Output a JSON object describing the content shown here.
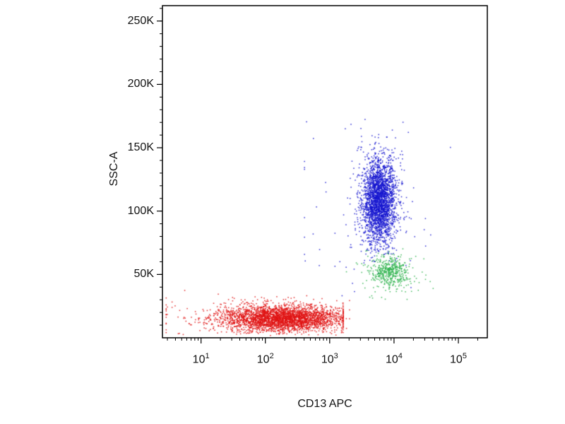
{
  "chart_data": {
    "type": "scatter",
    "title": "",
    "xlabel": "CD13 APC",
    "ylabel": "SSC-A",
    "x_scale": "log",
    "y_scale": "linear",
    "grid": false,
    "legend": "none",
    "x_tick_base": "10",
    "x_tick_exponents": [
      1,
      2,
      3,
      4,
      5
    ],
    "x_log_range": [
      0.4,
      5.45
    ],
    "y_range": [
      0,
      262144
    ],
    "y_ticks": [
      {
        "value": 50000,
        "label": "50K"
      },
      {
        "value": 100000,
        "label": "100K"
      },
      {
        "value": 150000,
        "label": "150K"
      },
      {
        "value": 200000,
        "label": "200K"
      },
      {
        "value": 250000,
        "label": "250K"
      }
    ],
    "y_minor_step": 10000,
    "frame_color": "#000000",
    "populations": [
      {
        "name": "cd13-negative-debris-core",
        "color": "#e01414",
        "n": 3200,
        "x_log_mean": 2.25,
        "x_log_sd": 0.48,
        "x_clip": [
          0.45,
          3.2
        ],
        "y_mean": 15500,
        "y_sd": 5200,
        "y_clip": [
          2500,
          33000
        ]
      },
      {
        "name": "cd13-negative-sparse",
        "color": "#e01414",
        "n": 130,
        "x_log_mean": 1.6,
        "x_log_sd": 0.9,
        "x_clip": [
          0.45,
          3.3
        ],
        "y_mean": 17000,
        "y_sd": 9000,
        "y_clip": [
          2000,
          40000
        ]
      },
      {
        "name": "cd13-positive-scatter-outliers",
        "color": "#1515cf",
        "n": 70,
        "x_log_mean": 3.5,
        "x_log_sd": 0.7,
        "x_clip": [
          2.6,
          5.6
        ],
        "y_mean": 100000,
        "y_sd": 40000,
        "y_clip": [
          30000,
          172000
        ]
      },
      {
        "name": "cd13-positive-granulocyte-halo",
        "color": "#1515cf",
        "n": 220,
        "x_log_mean": 3.77,
        "x_log_sd": 0.22,
        "x_clip": [
          3.0,
          4.6
        ],
        "y_mean": 110000,
        "y_sd": 30000,
        "y_clip": [
          40000,
          175000
        ]
      },
      {
        "name": "cd13-positive-granulocyte-core",
        "color": "#1515cf",
        "n": 2400,
        "x_log_mean": 3.76,
        "x_log_sd": 0.13,
        "x_clip": [
          3.2,
          4.4
        ],
        "y_mean": 108000,
        "y_sd": 16000,
        "y_clip": [
          60000,
          168000
        ]
      },
      {
        "name": "cd13-positive-monocyte-sparse",
        "color": "#2eb34d",
        "n": 80,
        "x_log_mean": 3.95,
        "x_log_sd": 0.28,
        "x_clip": [
          3.2,
          4.6
        ],
        "y_mean": 50000,
        "y_sd": 11000,
        "y_clip": [
          30000,
          75000
        ]
      },
      {
        "name": "cd13-positive-monocyte-core",
        "color": "#2eb34d",
        "n": 430,
        "x_log_mean": 3.93,
        "x_log_sd": 0.14,
        "x_clip": [
          3.4,
          4.4
        ],
        "y_mean": 52000,
        "y_sd": 6000,
        "y_clip": [
          36000,
          68000
        ]
      }
    ]
  }
}
